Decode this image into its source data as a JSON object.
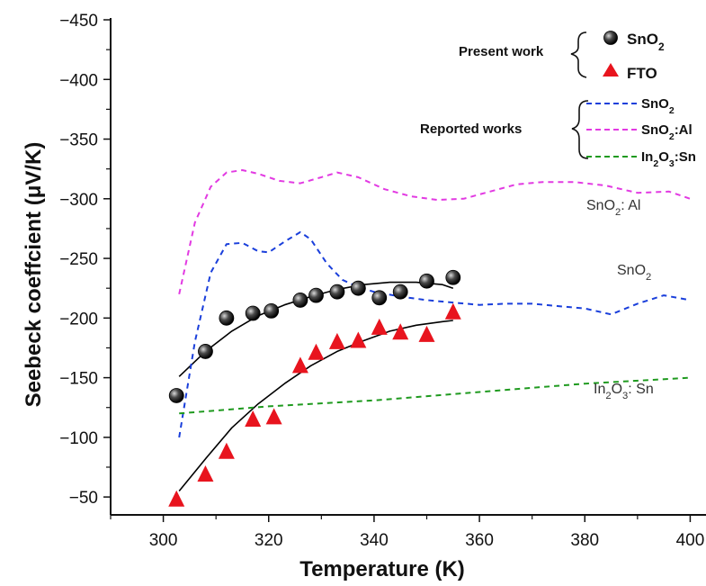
{
  "chart_data": {
    "type": "scatter",
    "xlabel": "Temperature (K)",
    "ylabel": "Seebeck coeffcient (μV/K)",
    "xlim": [
      290,
      403
    ],
    "ylim": [
      -450,
      -35
    ],
    "y_reversed": true,
    "xticks": [
      300,
      320,
      340,
      360,
      380,
      400
    ],
    "yticks": [
      -450,
      -400,
      -350,
      -300,
      -250,
      -200,
      -150,
      -100,
      -50
    ],
    "legend": {
      "present_label": "Present work",
      "reported_label": "Reported works",
      "entries": [
        {
          "label": "SnO",
          "sub": "2",
          "group": "present",
          "marker": "circle"
        },
        {
          "label": "FTO",
          "sub": "",
          "group": "present",
          "marker": "triangle"
        },
        {
          "label": "SnO",
          "sub": "2",
          "group": "reported",
          "color": "#1a3fdb"
        },
        {
          "label": "SnO",
          "sub": "2",
          "tail": ":Al",
          "group": "reported",
          "color": "#e23ae2"
        },
        {
          "label": "In",
          "sub": "2",
          "mid": "O",
          "sub2": "3",
          "tail": ":Sn",
          "group": "reported",
          "color": "#1f9a1f"
        }
      ]
    },
    "annotations": [
      {
        "parts": [
          "SnO",
          "2",
          ": Al"
        ],
        "x": 390,
        "y": -290
      },
      {
        "parts": [
          "SnO",
          "2",
          ""
        ],
        "x": 395,
        "y": -232
      },
      {
        "parts": [
          "In",
          "2",
          "O",
          "3",
          ": Sn"
        ],
        "x": 393,
        "y": -105
      }
    ],
    "series": [
      {
        "name": "SnO2",
        "kind": "points",
        "marker": "circle",
        "color": "#111111",
        "x": [
          302.5,
          308,
          312,
          317,
          320.5,
          326,
          329,
          333,
          337,
          341,
          345,
          350,
          355
        ],
        "y": [
          -135,
          -172,
          -200,
          -204,
          -206,
          -215,
          -219,
          -222,
          -225,
          -217,
          -222,
          -231,
          -234
        ]
      },
      {
        "name": "FTO",
        "kind": "points",
        "marker": "triangle",
        "color": "#e8141e",
        "x": [
          302.5,
          308,
          312,
          317,
          321,
          326,
          329,
          333,
          337,
          341,
          345,
          350,
          355
        ],
        "y": [
          -48,
          -69,
          -88,
          -115,
          -117,
          -160,
          -171,
          -180,
          -181,
          -192,
          -188,
          -186,
          -205
        ]
      },
      {
        "name": "SnO2 fit",
        "kind": "line",
        "color": "#000000",
        "dash": "",
        "width": 1.6,
        "x": [
          303,
          308,
          313,
          318,
          323,
          328,
          333,
          338,
          343,
          348,
          353,
          355
        ],
        "y": [
          -151,
          -172,
          -189,
          -202,
          -211,
          -218,
          -224,
          -228,
          -230,
          -230,
          -228,
          -225
        ]
      },
      {
        "name": "FTO fit",
        "kind": "line",
        "color": "#000000",
        "dash": "",
        "width": 1.6,
        "x": [
          303,
          308,
          313,
          318,
          323,
          328,
          333,
          338,
          343,
          348,
          353,
          355
        ],
        "y": [
          -55,
          -82,
          -108,
          -128,
          -145,
          -160,
          -172,
          -181,
          -189,
          -194,
          -197,
          -198
        ]
      },
      {
        "name": "SnO2 reported",
        "kind": "line",
        "color": "#1a3fdb",
        "dash": "6,5",
        "width": 2,
        "x": [
          303,
          306,
          309,
          312,
          315,
          318,
          320,
          323,
          326,
          328,
          331,
          334,
          337,
          340,
          345,
          350,
          355,
          360,
          365,
          370,
          375,
          380,
          385,
          390,
          395,
          400
        ],
        "y": [
          -100,
          -180,
          -238,
          -262,
          -263,
          -256,
          -255,
          -264,
          -272,
          -266,
          -246,
          -232,
          -226,
          -222,
          -218,
          -215,
          -213,
          -211,
          -212,
          -212,
          -210,
          -208,
          -203,
          -212,
          -219,
          -215
        ]
      },
      {
        "name": "SnO2:Al reported",
        "kind": "line",
        "color": "#e23ae2",
        "dash": "6,5",
        "width": 2,
        "x": [
          303,
          306,
          309,
          312,
          315,
          318,
          322,
          326,
          330,
          333,
          337,
          342,
          347,
          352,
          357,
          362,
          367,
          372,
          378,
          384,
          390,
          396,
          400
        ],
        "y": [
          -220,
          -280,
          -310,
          -322,
          -324,
          -321,
          -315,
          -313,
          -318,
          -322,
          -318,
          -308,
          -302,
          -299,
          -300,
          -306,
          -312,
          -314,
          -314,
          -311,
          -305,
          -306,
          -300
        ]
      },
      {
        "name": "In2O3:Sn reported",
        "kind": "line",
        "color": "#1f9a1f",
        "dash": "6,5",
        "width": 2,
        "x": [
          303,
          320,
          340,
          360,
          380,
          400
        ],
        "y": [
          -120,
          -126,
          -131,
          -138,
          -145,
          -150
        ]
      }
    ]
  }
}
